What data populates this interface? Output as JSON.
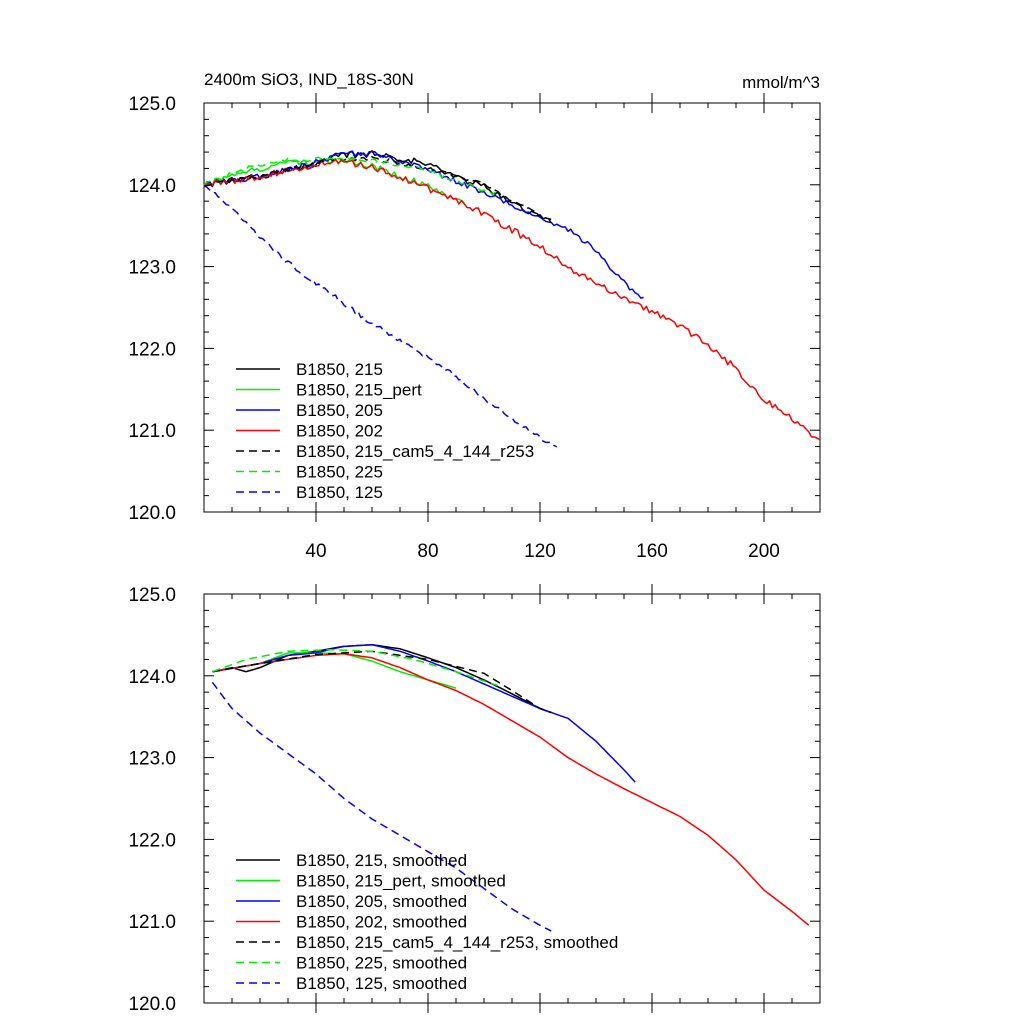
{
  "figure": {
    "title_left": "2400m SiO3, IND_18S-30N",
    "title_right": "mmol/m^3"
  },
  "chart_data": [
    {
      "type": "line",
      "panel": "top",
      "xlim": [
        0,
        220
      ],
      "ylim": [
        120.0,
        125.0
      ],
      "x_ticks": [
        40,
        80,
        120,
        160,
        200
      ],
      "x_tick_labels": [
        "40",
        "80",
        "120",
        "160",
        "200"
      ],
      "y_ticks": [
        120,
        121,
        122,
        123,
        124,
        125
      ],
      "y_tick_labels": [
        "120.0",
        "121.0",
        "122.0",
        "123.0",
        "124.0",
        "125.0"
      ],
      "legend_position": "bottom-left",
      "series": [
        {
          "name": "B1850, 215",
          "color": "#000000",
          "dash": "solid",
          "noise": 0.04,
          "x": [
            0,
            20,
            40,
            50,
            60,
            70,
            80,
            90,
            100,
            110,
            120,
            124
          ],
          "y": [
            124.0,
            124.1,
            124.26,
            124.36,
            124.38,
            124.33,
            124.25,
            124.1,
            123.98,
            123.78,
            123.6,
            123.55
          ]
        },
        {
          "name": "B1850, 215_pert",
          "color": "#00ee00",
          "dash": "solid",
          "noise": 0.04,
          "x": [
            0,
            15,
            30,
            45,
            55,
            65,
            75,
            85,
            93
          ],
          "y": [
            124.0,
            124.15,
            124.28,
            124.28,
            124.28,
            124.18,
            124.05,
            123.9,
            123.8
          ]
        },
        {
          "name": "B1850, 205",
          "color": "#0000ff",
          "dash": "solid",
          "noise": 0.035,
          "x": [
            0,
            20,
            40,
            50,
            60,
            70,
            80,
            90,
            100,
            110,
            120,
            130,
            140,
            150,
            157
          ],
          "y": [
            124.0,
            124.1,
            124.28,
            124.38,
            124.38,
            124.3,
            124.18,
            124.05,
            123.9,
            123.75,
            123.6,
            123.45,
            123.2,
            122.8,
            122.6
          ]
        },
        {
          "name": "B1850, 202",
          "color": "#ff0000",
          "dash": "solid",
          "noise": 0.04,
          "x": [
            0,
            20,
            40,
            50,
            60,
            70,
            80,
            90,
            100,
            110,
            120,
            130,
            140,
            150,
            160,
            170,
            180,
            190,
            200,
            210,
            220
          ],
          "y": [
            124.0,
            124.1,
            124.25,
            124.28,
            124.22,
            124.1,
            123.95,
            123.82,
            123.65,
            123.45,
            123.25,
            123.0,
            122.8,
            122.62,
            122.45,
            122.28,
            122.05,
            121.75,
            121.38,
            121.15,
            120.85
          ]
        },
        {
          "name": "B1850, 215_cam5_4_144_r253",
          "color": "#000000",
          "dash": "8,5",
          "noise": 0.025,
          "x": [
            0,
            20,
            40,
            60,
            80,
            100,
            110,
            120,
            124
          ],
          "y": [
            124.0,
            124.1,
            124.28,
            124.33,
            124.2,
            124.02,
            123.8,
            123.62,
            123.55
          ]
        },
        {
          "name": "B1850, 225",
          "color": "#00ee00",
          "dash": "8,5",
          "noise": 0.025,
          "x": [
            0,
            15,
            30,
            45,
            60,
            75,
            90,
            105
          ],
          "y": [
            124.0,
            124.2,
            124.3,
            124.32,
            124.3,
            124.22,
            124.05,
            123.88
          ]
        },
        {
          "name": "B1850, 125",
          "color": "#0000ff",
          "dash": "8,5",
          "noise": 0.03,
          "x": [
            0,
            10,
            20,
            30,
            40,
            50,
            60,
            70,
            80,
            90,
            100,
            110,
            120,
            126
          ],
          "y": [
            124.0,
            123.7,
            123.35,
            123.05,
            122.8,
            122.55,
            122.3,
            122.1,
            121.9,
            121.65,
            121.4,
            121.15,
            120.9,
            120.8
          ]
        }
      ]
    },
    {
      "type": "line",
      "panel": "bottom",
      "xlim": [
        0,
        220
      ],
      "ylim": [
        120.0,
        125.0
      ],
      "x_ticks": [
        40,
        80,
        120,
        160,
        200
      ],
      "x_tick_labels": [
        "",
        "",
        "",
        "",
        ""
      ],
      "y_ticks": [
        120,
        121,
        122,
        123,
        124,
        125
      ],
      "y_tick_labels": [
        "120.0",
        "121.0",
        "122.0",
        "123.0",
        "124.0",
        "125.0"
      ],
      "legend_position": "bottom-left",
      "series": [
        {
          "name": "B1850, 215, smoothed",
          "color": "#000000",
          "dash": "solid",
          "noise": 0,
          "x": [
            3,
            10,
            15,
            20,
            30,
            40,
            50,
            60,
            70,
            80,
            90,
            100,
            110,
            120,
            124
          ],
          "y": [
            124.05,
            124.1,
            124.05,
            124.1,
            124.25,
            124.3,
            124.36,
            124.38,
            124.33,
            124.22,
            124.1,
            123.95,
            123.78,
            123.6,
            123.55
          ]
        },
        {
          "name": "B1850, 215_pert, smoothed",
          "color": "#00ee00",
          "dash": "solid",
          "noise": 0,
          "x": [
            3,
            20,
            30,
            40,
            50,
            60,
            70,
            80,
            90
          ],
          "y": [
            124.05,
            124.15,
            124.28,
            124.28,
            124.27,
            124.18,
            124.05,
            123.95,
            123.85
          ]
        },
        {
          "name": "B1850, 205, smoothed",
          "color": "#0000ff",
          "dash": "solid",
          "noise": 0,
          "x": [
            3,
            20,
            30,
            40,
            50,
            60,
            70,
            80,
            90,
            100,
            110,
            120,
            130,
            140,
            150,
            154
          ],
          "y": [
            124.05,
            124.15,
            124.25,
            124.28,
            124.36,
            124.38,
            124.3,
            124.18,
            124.05,
            123.9,
            123.75,
            123.6,
            123.48,
            123.2,
            122.85,
            122.7
          ]
        },
        {
          "name": "B1850, 202, smoothed",
          "color": "#ff0000",
          "dash": "solid",
          "noise": 0,
          "x": [
            3,
            20,
            40,
            50,
            60,
            70,
            80,
            90,
            100,
            110,
            120,
            130,
            140,
            150,
            160,
            170,
            180,
            190,
            200,
            210,
            216
          ],
          "y": [
            124.05,
            124.15,
            124.25,
            124.27,
            124.22,
            124.1,
            123.95,
            123.82,
            123.65,
            123.45,
            123.25,
            123.0,
            122.8,
            122.62,
            122.45,
            122.28,
            122.05,
            121.75,
            121.38,
            121.12,
            120.95
          ]
        },
        {
          "name": "B1850, 215_cam5_4_144_r253, smoothed",
          "color": "#000000",
          "dash": "8,5",
          "noise": 0,
          "x": [
            3,
            20,
            40,
            60,
            80,
            100,
            110,
            120,
            124
          ],
          "y": [
            124.05,
            124.15,
            124.26,
            124.3,
            124.2,
            124.03,
            123.82,
            123.6,
            123.55
          ]
        },
        {
          "name": "B1850, 225, smoothed",
          "color": "#00ee00",
          "dash": "8,5",
          "noise": 0,
          "x": [
            3,
            15,
            30,
            45,
            60,
            75,
            90,
            105
          ],
          "y": [
            124.05,
            124.2,
            124.3,
            124.32,
            124.3,
            124.2,
            124.05,
            123.88
          ]
        },
        {
          "name": "B1850, 125, smoothed",
          "color": "#0000ff",
          "dash": "8,5",
          "noise": 0,
          "x": [
            3,
            10,
            20,
            30,
            40,
            50,
            60,
            70,
            80,
            90,
            100,
            110,
            120,
            124
          ],
          "y": [
            123.92,
            123.6,
            123.3,
            123.05,
            122.8,
            122.5,
            122.25,
            122.05,
            121.85,
            121.65,
            121.4,
            121.15,
            120.95,
            120.88
          ]
        }
      ]
    }
  ]
}
